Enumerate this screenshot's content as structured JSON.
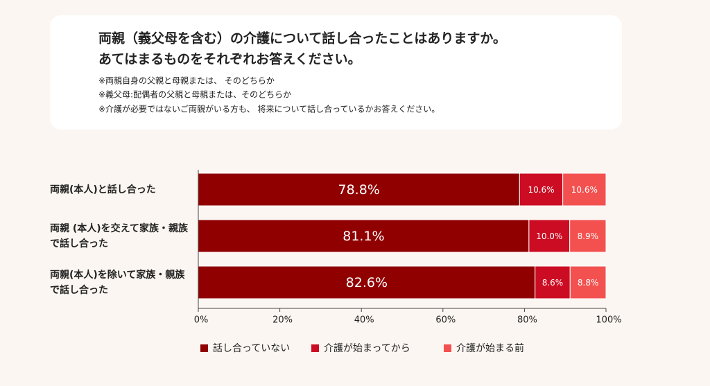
{
  "chart_data": {
    "type": "stacked-bar-horizontal",
    "title": [
      "両親（義父母を含む）の介護について話し合ったことはありますか。",
      "あてはまるものをそれぞれお答えください。"
    ],
    "notes": [
      "※両親自身の父親と母親または、 そのどちらか",
      "※義父母:配偶者の父親と母親または、そのどちらか",
      "※介護が必要ではないご両親がいる方も、 将来について話し合っているかお答えください。"
    ],
    "categories": [
      "両親(本人)と話し合った",
      "両親 (本人)を交えて家族・親族で話し合った",
      "両親(本人)を除いて家族・親族で話し合った"
    ],
    "series": [
      {
        "name": "話し合っていない",
        "color": "#900000",
        "values": [
          78.8,
          81.1,
          82.6
        ],
        "value_labels": [
          "78.8%",
          "81.1%",
          "82.6%"
        ]
      },
      {
        "name": "介護が始まってから",
        "color": "#cc0c22",
        "values": [
          10.6,
          10.0,
          8.6
        ],
        "value_labels": [
          "10.6%",
          "10.0%",
          "8.6%"
        ]
      },
      {
        "name": "介護が始まる前",
        "color": "#f2514f",
        "values": [
          10.6,
          8.9,
          8.8
        ],
        "value_labels": [
          "10.6%",
          "8.9%",
          "8.8%"
        ]
      }
    ],
    "xlim": [
      0,
      100
    ],
    "xticks": [
      {
        "value": 0,
        "label": "0%"
      },
      {
        "value": 20,
        "label": "20%"
      },
      {
        "value": 40,
        "label": "40%"
      },
      {
        "value": 60,
        "label": "60%"
      },
      {
        "value": 80,
        "label": "80%"
      },
      {
        "value": 100,
        "label": "100%"
      }
    ]
  }
}
